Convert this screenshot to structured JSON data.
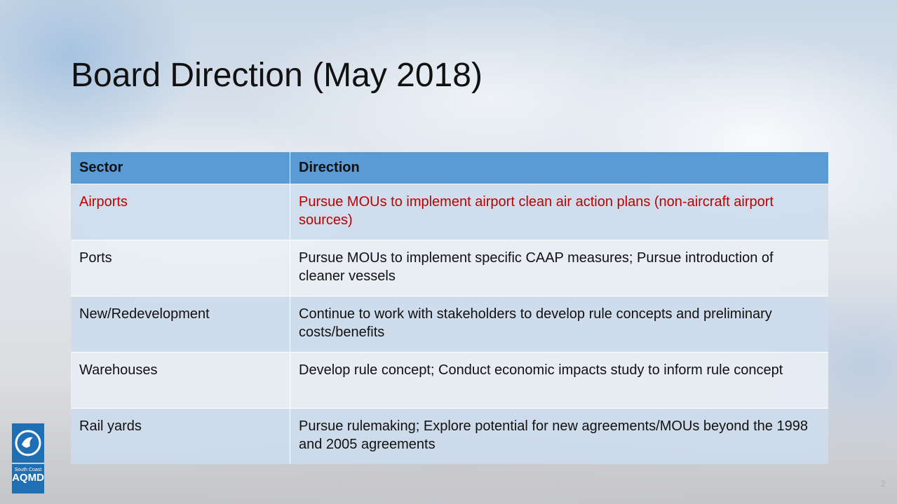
{
  "header": {
    "title": "Board Direction (May 2018)"
  },
  "table": {
    "headers": [
      "Sector",
      "Direction"
    ],
    "rows": [
      [
        "Airports",
        "Pursue MOUs to implement airport clean air action plans (non-aircraft airport sources)"
      ],
      [
        "Ports",
        "Pursue MOUs to implement specific CAAP measures; Pursue introduction of cleaner vessels"
      ],
      [
        "New/Redevelopment",
        "Continue to work with stakeholders to develop rule concepts and preliminary costs/benefits"
      ],
      [
        "Warehouses",
        "Develop rule concept; Conduct economic impacts study to inform rule concept"
      ],
      [
        "Rail yards",
        "Pursue rulemaking; Explore potential for new agreements/MOUs beyond the 1998 and 2005 agreements"
      ]
    ]
  },
  "logo": {
    "line1": "South Coast",
    "line2": "AQMD"
  },
  "page_number": "2"
}
